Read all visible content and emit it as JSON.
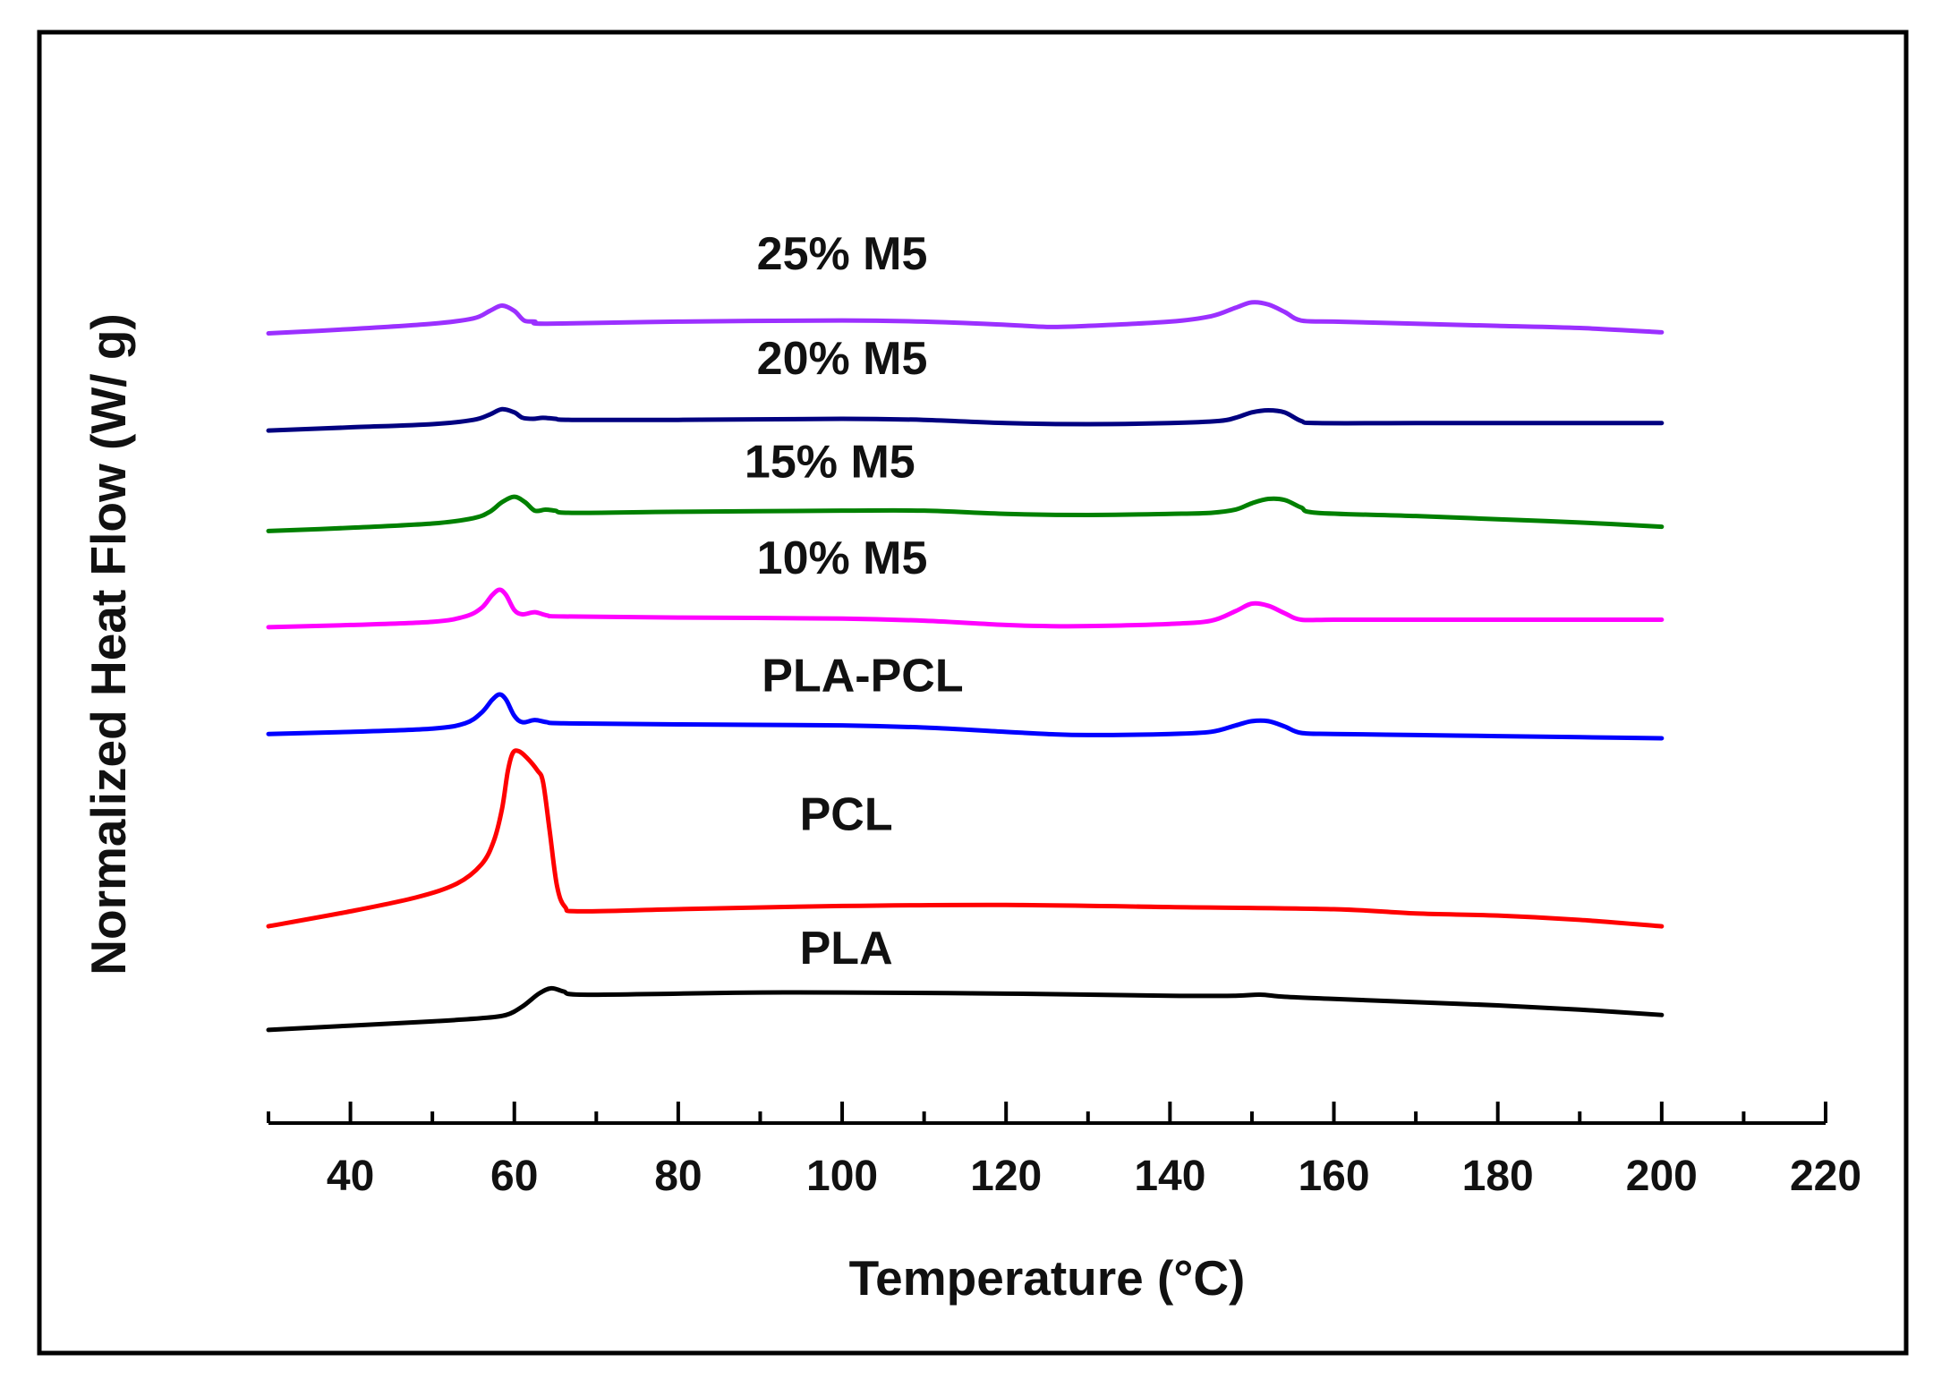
{
  "chart_data": {
    "type": "line",
    "title": "",
    "xlabel": "Temperature (°C)",
    "ylabel": "Normalized Heat Flow (W/ g)",
    "xlim": [
      30,
      220
    ],
    "ylim": [
      -1.8,
      8.0
    ],
    "xticks": [
      40,
      60,
      80,
      100,
      120,
      140,
      160,
      180,
      200,
      220
    ],
    "xtick_labels": [
      "40",
      "60",
      "80",
      "100",
      "120",
      "140",
      "160",
      "180",
      "200",
      "220"
    ],
    "minor_xtick_step": 10,
    "series": [
      {
        "name": "PLA",
        "label": "PLA",
        "color": "#000000",
        "label_pos": [
          100.5,
          -0.35
        ],
        "points": [
          [
            30,
            -0.97
          ],
          [
            40,
            -0.93
          ],
          [
            50,
            -0.89
          ],
          [
            56,
            -0.86
          ],
          [
            59,
            -0.83
          ],
          [
            61,
            -0.75
          ],
          [
            63,
            -0.63
          ],
          [
            64.5,
            -0.58
          ],
          [
            66,
            -0.61
          ],
          [
            68,
            -0.64
          ],
          [
            80,
            -0.63
          ],
          [
            90,
            -0.62
          ],
          [
            100,
            -0.62
          ],
          [
            120,
            -0.63
          ],
          [
            140,
            -0.65
          ],
          [
            148,
            -0.65
          ],
          [
            151,
            -0.64
          ],
          [
            154,
            -0.66
          ],
          [
            160,
            -0.68
          ],
          [
            170,
            -0.71
          ],
          [
            180,
            -0.74
          ],
          [
            190,
            -0.78
          ],
          [
            200,
            -0.83
          ]
        ]
      },
      {
        "name": "PCL",
        "label": "PCL",
        "color": "#ff0000",
        "label_pos": [
          100.5,
          0.9
        ],
        "points": [
          [
            30,
            0.0
          ],
          [
            40,
            0.14
          ],
          [
            48,
            0.27
          ],
          [
            53,
            0.4
          ],
          [
            56,
            0.58
          ],
          [
            57.5,
            0.8
          ],
          [
            58.5,
            1.1
          ],
          [
            59.2,
            1.45
          ],
          [
            59.8,
            1.62
          ],
          [
            60.5,
            1.64
          ],
          [
            61.5,
            1.58
          ],
          [
            62.8,
            1.46
          ],
          [
            63.5,
            1.35
          ],
          [
            64.3,
            0.9
          ],
          [
            65.2,
            0.38
          ],
          [
            66.2,
            0.18
          ],
          [
            68,
            0.14
          ],
          [
            80,
            0.16
          ],
          [
            100,
            0.19
          ],
          [
            120,
            0.2
          ],
          [
            140,
            0.18
          ],
          [
            160,
            0.16
          ],
          [
            170,
            0.12
          ],
          [
            180,
            0.1
          ],
          [
            190,
            0.06
          ],
          [
            200,
            0.0
          ]
        ]
      },
      {
        "name": "PLA-PCL",
        "label": "PLA-PCL",
        "color": "#0000ff",
        "label_pos": [
          102.5,
          2.2
        ],
        "points": [
          [
            30,
            1.8
          ],
          [
            40,
            1.82
          ],
          [
            50,
            1.85
          ],
          [
            54,
            1.9
          ],
          [
            56,
            2.0
          ],
          [
            57.3,
            2.12
          ],
          [
            58.2,
            2.17
          ],
          [
            59,
            2.12
          ],
          [
            60,
            1.97
          ],
          [
            61,
            1.91
          ],
          [
            62.5,
            1.93
          ],
          [
            64,
            1.91
          ],
          [
            66,
            1.9
          ],
          [
            80,
            1.89
          ],
          [
            100,
            1.88
          ],
          [
            110,
            1.86
          ],
          [
            120,
            1.82
          ],
          [
            125,
            1.8
          ],
          [
            130,
            1.79
          ],
          [
            140,
            1.8
          ],
          [
            145,
            1.82
          ],
          [
            148,
            1.88
          ],
          [
            150,
            1.92
          ],
          [
            152,
            1.92
          ],
          [
            154,
            1.87
          ],
          [
            156,
            1.81
          ],
          [
            160,
            1.8
          ],
          [
            170,
            1.79
          ],
          [
            180,
            1.78
          ],
          [
            190,
            1.77
          ],
          [
            200,
            1.76
          ]
        ]
      },
      {
        "name": "10% M5",
        "label": "10% M5",
        "color": "#ff00ff",
        "label_pos": [
          100,
          3.3
        ],
        "points": [
          [
            30,
            2.8
          ],
          [
            40,
            2.82
          ],
          [
            50,
            2.85
          ],
          [
            54,
            2.9
          ],
          [
            56,
            2.98
          ],
          [
            57.3,
            3.1
          ],
          [
            58.2,
            3.15
          ],
          [
            59,
            3.1
          ],
          [
            60,
            2.96
          ],
          [
            61,
            2.92
          ],
          [
            62.5,
            2.94
          ],
          [
            64,
            2.91
          ],
          [
            66,
            2.9
          ],
          [
            80,
            2.89
          ],
          [
            100,
            2.88
          ],
          [
            110,
            2.86
          ],
          [
            120,
            2.82
          ],
          [
            125,
            2.81
          ],
          [
            130,
            2.81
          ],
          [
            140,
            2.83
          ],
          [
            145,
            2.86
          ],
          [
            148,
            2.95
          ],
          [
            150,
            3.02
          ],
          [
            152,
            3.0
          ],
          [
            154,
            2.93
          ],
          [
            156,
            2.87
          ],
          [
            160,
            2.87
          ],
          [
            170,
            2.87
          ],
          [
            180,
            2.87
          ],
          [
            190,
            2.87
          ],
          [
            200,
            2.87
          ]
        ]
      },
      {
        "name": "15% M5",
        "label": "15% M5",
        "color": "#008000",
        "label_pos": [
          98.5,
          4.2
        ],
        "points": [
          [
            30,
            3.7
          ],
          [
            40,
            3.73
          ],
          [
            50,
            3.77
          ],
          [
            55,
            3.82
          ],
          [
            57,
            3.88
          ],
          [
            58.5,
            3.97
          ],
          [
            60,
            4.02
          ],
          [
            61.3,
            3.97
          ],
          [
            62.5,
            3.89
          ],
          [
            63.8,
            3.9
          ],
          [
            65,
            3.89
          ],
          [
            67,
            3.87
          ],
          [
            80,
            3.88
          ],
          [
            100,
            3.89
          ],
          [
            110,
            3.89
          ],
          [
            120,
            3.86
          ],
          [
            130,
            3.85
          ],
          [
            140,
            3.86
          ],
          [
            145,
            3.87
          ],
          [
            148,
            3.9
          ],
          [
            150,
            3.96
          ],
          [
            152,
            4.0
          ],
          [
            154,
            3.99
          ],
          [
            156,
            3.92
          ],
          [
            158,
            3.87
          ],
          [
            170,
            3.84
          ],
          [
            180,
            3.81
          ],
          [
            190,
            3.78
          ],
          [
            200,
            3.74
          ]
        ]
      },
      {
        "name": "20% M5",
        "label": "20% M5",
        "color": "#000080",
        "label_pos": [
          100,
          5.17
        ],
        "points": [
          [
            30,
            4.64
          ],
          [
            40,
            4.67
          ],
          [
            50,
            4.7
          ],
          [
            55,
            4.74
          ],
          [
            57,
            4.79
          ],
          [
            58.5,
            4.84
          ],
          [
            60,
            4.81
          ],
          [
            61,
            4.76
          ],
          [
            62.3,
            4.75
          ],
          [
            63.5,
            4.76
          ],
          [
            65,
            4.75
          ],
          [
            67,
            4.74
          ],
          [
            80,
            4.74
          ],
          [
            100,
            4.75
          ],
          [
            110,
            4.74
          ],
          [
            120,
            4.71
          ],
          [
            130,
            4.7
          ],
          [
            140,
            4.71
          ],
          [
            146,
            4.73
          ],
          [
            148,
            4.76
          ],
          [
            150,
            4.81
          ],
          [
            152,
            4.83
          ],
          [
            154,
            4.81
          ],
          [
            156,
            4.73
          ],
          [
            158,
            4.71
          ],
          [
            170,
            4.71
          ],
          [
            180,
            4.71
          ],
          [
            190,
            4.71
          ],
          [
            200,
            4.71
          ]
        ]
      },
      {
        "name": "25% M5",
        "label": "25% M5",
        "color": "#9b30ff",
        "label_pos": [
          100,
          6.15
        ],
        "points": [
          [
            30,
            5.55
          ],
          [
            40,
            5.59
          ],
          [
            50,
            5.64
          ],
          [
            55,
            5.69
          ],
          [
            57,
            5.76
          ],
          [
            58.5,
            5.81
          ],
          [
            60,
            5.76
          ],
          [
            61.2,
            5.67
          ],
          [
            62.5,
            5.66
          ],
          [
            64,
            5.64
          ],
          [
            80,
            5.66
          ],
          [
            100,
            5.67
          ],
          [
            110,
            5.66
          ],
          [
            120,
            5.63
          ],
          [
            125,
            5.61
          ],
          [
            130,
            5.62
          ],
          [
            140,
            5.66
          ],
          [
            145,
            5.71
          ],
          [
            148,
            5.79
          ],
          [
            150,
            5.84
          ],
          [
            152,
            5.82
          ],
          [
            154,
            5.75
          ],
          [
            156,
            5.67
          ],
          [
            160,
            5.66
          ],
          [
            170,
            5.64
          ],
          [
            180,
            5.62
          ],
          [
            190,
            5.6
          ],
          [
            200,
            5.56
          ]
        ]
      }
    ]
  }
}
